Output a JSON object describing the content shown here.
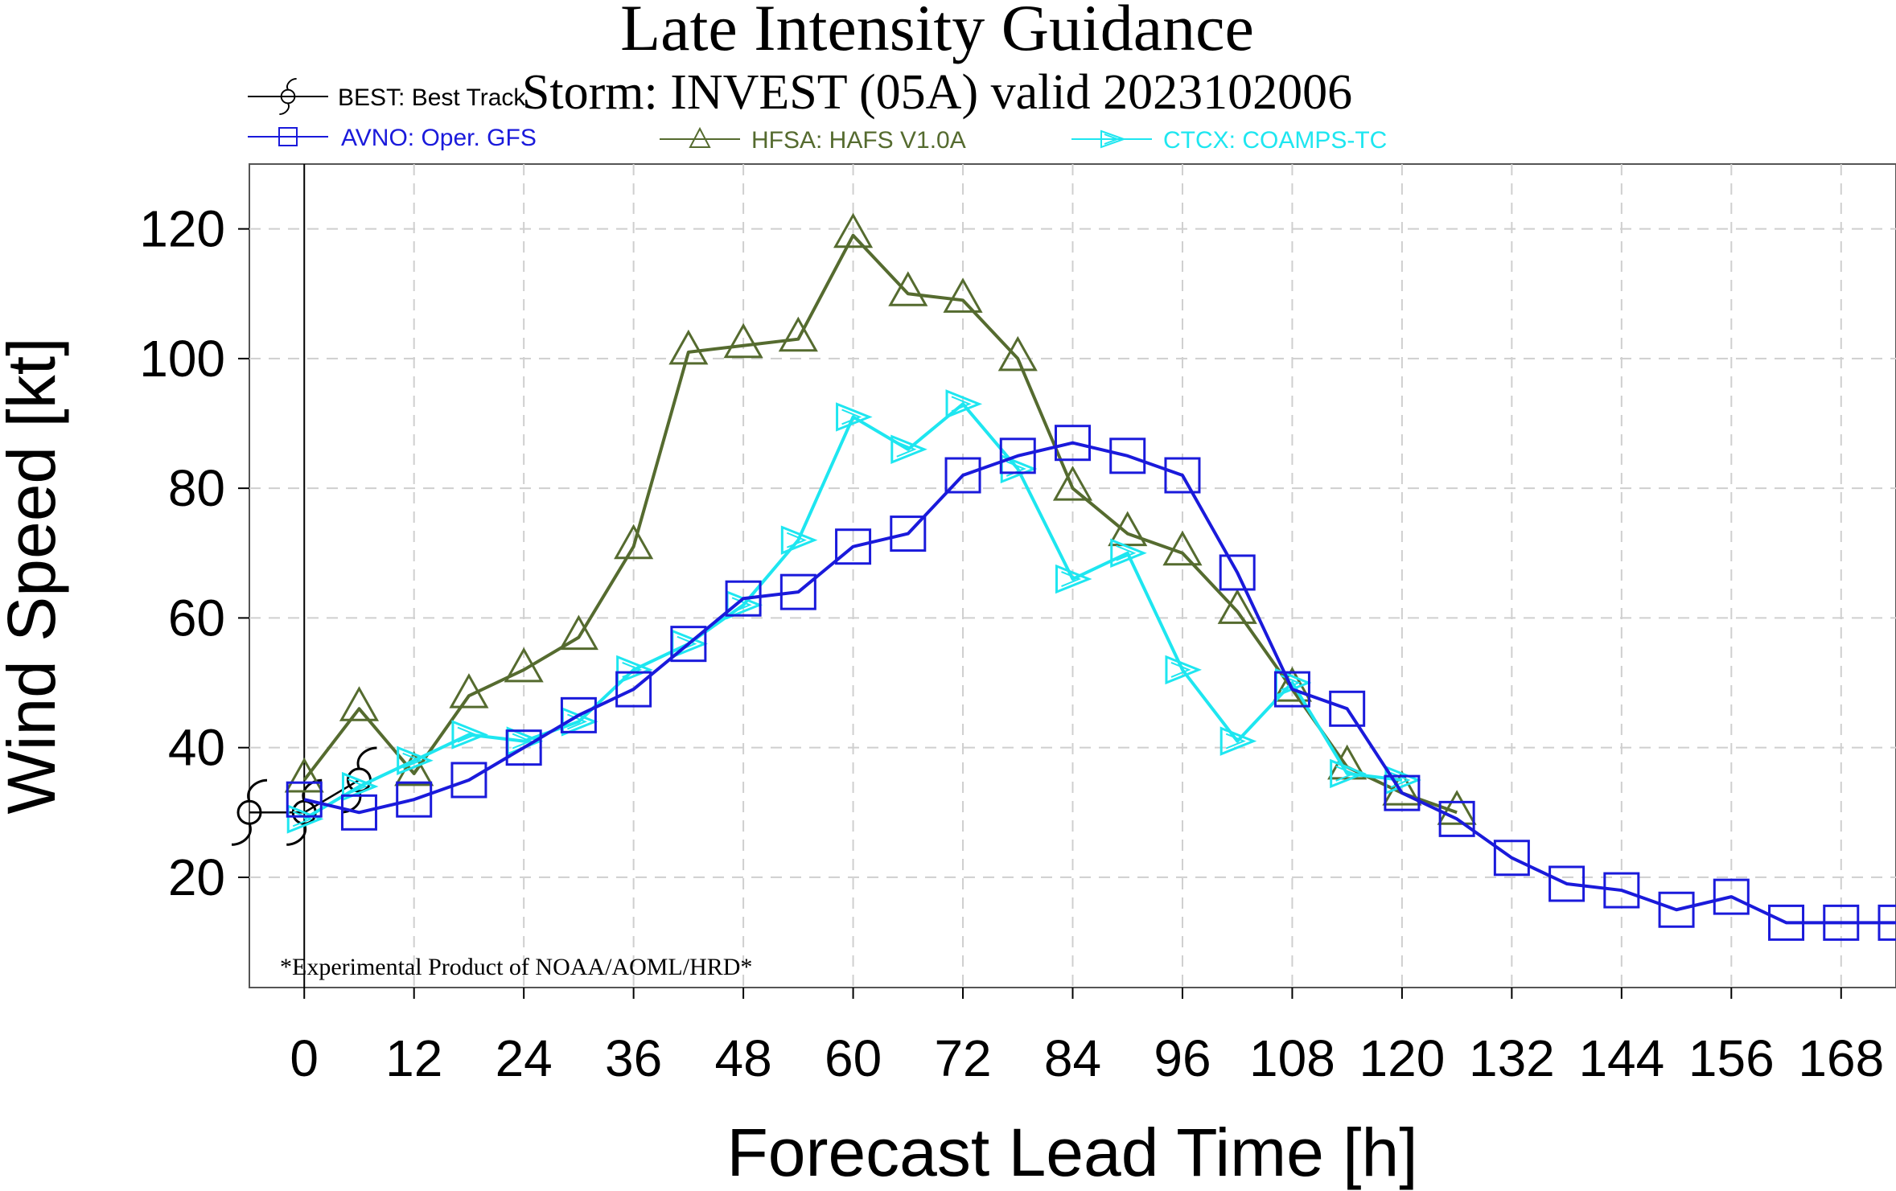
{
  "header": {
    "title": "Late Intensity Guidance",
    "subtitle": "Storm: INVEST (05A) valid 2023102006"
  },
  "footnote": "*Experimental Product of NOAA/AOML/HRD*",
  "colors": {
    "best": "#000000",
    "avno": "#1a1adb",
    "hfsa": "#556b2f",
    "ctcx": "#1ee6f0",
    "grid": "#cfcfcf"
  },
  "legend": [
    {
      "id": "best",
      "text": "BEST: Best Track",
      "marker": "hurricane-icon"
    },
    {
      "id": "avno",
      "text": "AVNO: Oper. GFS",
      "marker": "square-icon"
    },
    {
      "id": "hfsa",
      "text": "HFSA: HAFS V1.0A",
      "marker": "triangle-icon"
    },
    {
      "id": "ctcx",
      "text": "CTCX: COAMPS-TC",
      "marker": "arrow-triangle-icon"
    }
  ],
  "chart_data": {
    "type": "line",
    "title": "Late Intensity Guidance",
    "subtitle": "Storm: INVEST (05A) valid 2023102006",
    "xlabel": "Forecast Lead Time [h]",
    "ylabel": "Wind Speed [kt]",
    "xlim": [
      -6,
      174
    ],
    "ylim": [
      3,
      130
    ],
    "xticks": [
      0,
      12,
      24,
      36,
      48,
      60,
      72,
      84,
      96,
      108,
      120,
      132,
      144,
      156,
      168
    ],
    "yticks": [
      20,
      40,
      60,
      80,
      100,
      120
    ],
    "grid": true,
    "legend_position": "top",
    "series": [
      {
        "id": "best",
        "name": "BEST: Best Track",
        "marker": "hurricane",
        "x": [
          -6,
          0,
          6
        ],
        "y": [
          30,
          30,
          35
        ]
      },
      {
        "id": "hfsa",
        "name": "HFSA: HAFS V1.0A",
        "marker": "triangle",
        "x": [
          0,
          6,
          12,
          18,
          24,
          30,
          36,
          42,
          48,
          54,
          60,
          66,
          72,
          78,
          84,
          90,
          96,
          102,
          108,
          114,
          120,
          126
        ],
        "y": [
          35,
          46,
          36,
          48,
          52,
          57,
          71,
          101,
          102,
          103,
          119,
          110,
          109,
          100,
          80,
          73,
          70,
          61,
          49,
          37,
          33,
          30
        ]
      },
      {
        "id": "ctcx",
        "name": "CTCX: COAMPS-TC",
        "marker": "arrow",
        "x": [
          0,
          6,
          12,
          18,
          24,
          30,
          36,
          42,
          48,
          54,
          60,
          66,
          72,
          78,
          84,
          90,
          96,
          102,
          108,
          114,
          120
        ],
        "y": [
          29,
          34,
          38,
          42,
          41,
          44,
          52,
          56,
          62,
          72,
          91,
          86,
          93,
          83,
          66,
          70,
          52,
          41,
          50,
          36,
          35
        ]
      },
      {
        "id": "avno",
        "name": "AVNO: Oper. GFS",
        "marker": "square",
        "x": [
          0,
          6,
          12,
          18,
          24,
          30,
          36,
          42,
          48,
          54,
          60,
          66,
          72,
          78,
          84,
          90,
          96,
          102,
          108,
          114,
          120,
          126,
          132,
          138,
          144,
          150,
          156,
          162,
          168,
          174
        ],
        "y": [
          32,
          30,
          32,
          35,
          40,
          45,
          49,
          56,
          63,
          64,
          71,
          73,
          82,
          85,
          87,
          85,
          82,
          67,
          49,
          46,
          33,
          29,
          23,
          19,
          18,
          15,
          17,
          13,
          13,
          13
        ]
      }
    ]
  }
}
